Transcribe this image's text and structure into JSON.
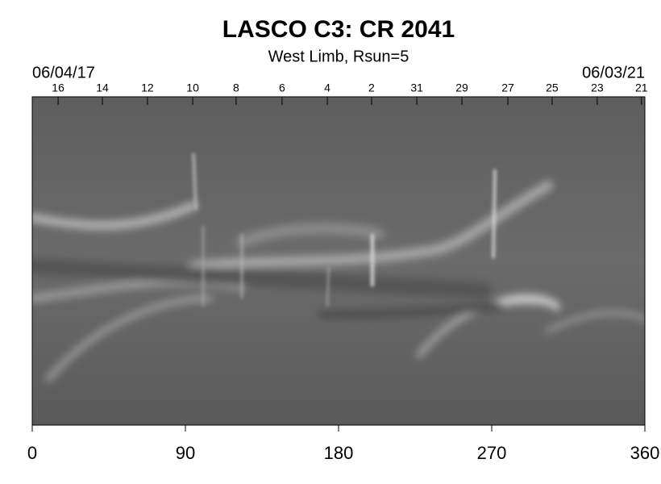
{
  "chart_data": {
    "type": "image",
    "title": "LASCO C3: CR 2041",
    "subtitle": "West Limb, Rsun=5",
    "start_date": "06/04/17",
    "end_date": "06/03/21",
    "xlim": [
      0,
      360
    ],
    "xticks": [
      0,
      90,
      180,
      270,
      360
    ],
    "top_ticks": [
      {
        "value": 15.2,
        "label": "16"
      },
      {
        "value": 41.2,
        "label": "14"
      },
      {
        "value": 67.7,
        "label": "12"
      },
      {
        "value": 94.3,
        "label": "10"
      },
      {
        "value": 119.8,
        "label": "8"
      },
      {
        "value": 146.8,
        "label": "6"
      },
      {
        "value": 173.4,
        "label": "4"
      },
      {
        "value": 199.4,
        "label": "2"
      },
      {
        "value": 226,
        "label": "31"
      },
      {
        "value": 252.5,
        "label": "29"
      },
      {
        "value": 279.5,
        "label": "27"
      },
      {
        "value": 305.5,
        "label": "25"
      },
      {
        "value": 332,
        "label": "23"
      },
      {
        "value": 358,
        "label": "21"
      }
    ]
  }
}
